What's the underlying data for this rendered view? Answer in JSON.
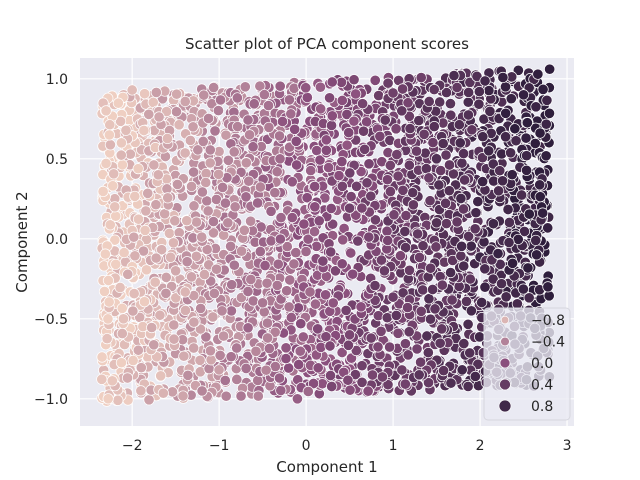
{
  "chart_data": {
    "type": "scatter",
    "title": "Scatter plot of PCA component scores",
    "xlabel": "Component 1",
    "ylabel": "Component 2",
    "xlim": [
      -2.6,
      3.08
    ],
    "ylim": [
      -1.17,
      1.13
    ],
    "x_ticks": [
      -2,
      -1,
      0,
      1,
      2,
      3
    ],
    "x_tick_labels": [
      "−2",
      "−1",
      "0",
      "1",
      "2",
      "3"
    ],
    "y_ticks": [
      -1.0,
      -0.5,
      0.0,
      0.5,
      1.0
    ],
    "y_tick_labels": [
      "−1.0",
      "−0.5",
      "0.0",
      "0.5",
      "1.0"
    ],
    "grid": true,
    "hue": {
      "min": -1.0,
      "max": 1.0,
      "color_low": "#efcfc2",
      "color_high": "#2e1e3c"
    },
    "legend": {
      "placement": "lower-right",
      "entries": [
        {
          "label": "−0.8",
          "value": -0.8
        },
        {
          "label": "−0.4",
          "value": -0.4
        },
        {
          "label": "0.0",
          "value": 0.0
        },
        {
          "label": "0.4",
          "value": 0.4
        },
        {
          "label": "0.8",
          "value": 0.8
        }
      ]
    },
    "points_summary": {
      "x_range": [
        -2.35,
        2.8
      ],
      "y_range": [
        -1.07,
        1.07
      ],
      "y_top_at_x_min": 0.92,
      "y_top_at_x_max": 1.07,
      "y_bottom_at_x_min": -1.02,
      "y_bottom_at_x_max": -0.92
    },
    "points": [
      {
        "x": -2.3,
        "y": 0.8,
        "c": -0.95
      },
      {
        "x": -2.2,
        "y": 0.2,
        "c": -0.9
      },
      {
        "x": -2.1,
        "y": -0.5,
        "c": -0.88
      },
      {
        "x": -2.0,
        "y": 0.93,
        "c": -0.85
      },
      {
        "x": -1.9,
        "y": -0.95,
        "c": -0.8
      },
      {
        "x": -1.7,
        "y": 0.4,
        "c": -0.75
      },
      {
        "x": -1.5,
        "y": -0.2,
        "c": -0.7
      },
      {
        "x": -1.3,
        "y": 0.7,
        "c": -0.62
      },
      {
        "x": -1.1,
        "y": -0.7,
        "c": -0.55
      },
      {
        "x": -0.9,
        "y": 0.1,
        "c": -0.48
      },
      {
        "x": -0.7,
        "y": 0.95,
        "c": -0.4
      },
      {
        "x": -0.5,
        "y": -0.4,
        "c": -0.32
      },
      {
        "x": -0.3,
        "y": 0.5,
        "c": -0.22
      },
      {
        "x": -0.1,
        "y": -1.0,
        "c": -0.12
      },
      {
        "x": 0.1,
        "y": 0.2,
        "c": 0.0
      },
      {
        "x": 0.3,
        "y": 0.98,
        "c": 0.08
      },
      {
        "x": 0.5,
        "y": -0.6,
        "c": 0.18
      },
      {
        "x": 0.7,
        "y": 0.35,
        "c": 0.28
      },
      {
        "x": 0.9,
        "y": -0.2,
        "c": 0.36
      },
      {
        "x": 1.1,
        "y": 0.8,
        "c": 0.45
      },
      {
        "x": 1.3,
        "y": -0.85,
        "c": 0.52
      },
      {
        "x": 1.5,
        "y": 0.1,
        "c": 0.6
      },
      {
        "x": 1.7,
        "y": 1.02,
        "c": 0.68
      },
      {
        "x": 1.9,
        "y": -0.45,
        "c": 0.75
      },
      {
        "x": 2.1,
        "y": 0.55,
        "c": 0.82
      },
      {
        "x": 2.3,
        "y": -0.9,
        "c": 0.88
      },
      {
        "x": 2.5,
        "y": 0.9,
        "c": 0.93
      },
      {
        "x": 2.65,
        "y": -0.1,
        "c": 0.96
      },
      {
        "x": 2.8,
        "y": 1.06,
        "c": 0.99
      },
      {
        "x": 2.78,
        "y": -0.3,
        "c": 0.99
      }
    ]
  }
}
